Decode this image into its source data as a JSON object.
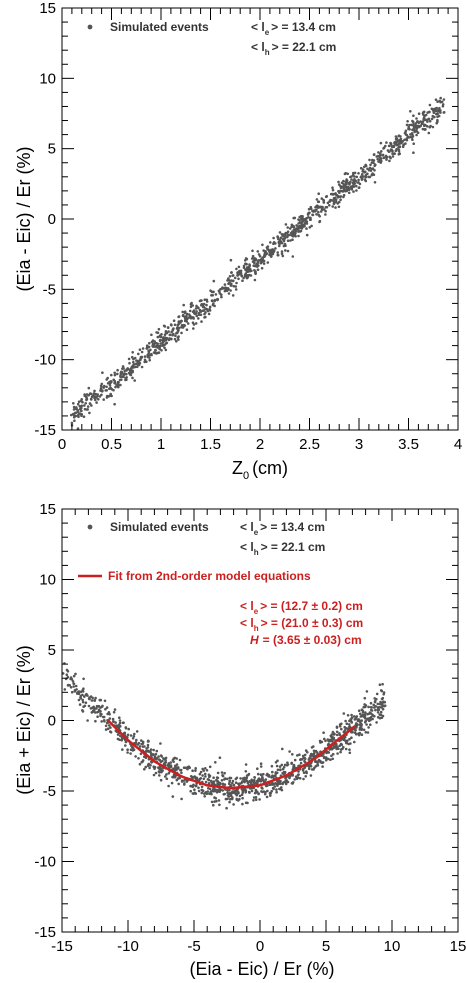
{
  "chart_data": [
    {
      "type": "scatter",
      "xlabel": "Z",
      "xlabel_sub": "0",
      "xlabel_unit": "(cm)",
      "ylabel": "(Eia - Eic) / Er  (%)",
      "xlim": [
        0,
        4
      ],
      "ylim": [
        -15,
        15
      ],
      "x_ticks": [
        0,
        0.5,
        1,
        1.5,
        2,
        2.5,
        3,
        3.5,
        4
      ],
      "x_tick_labels": [
        "0",
        "0.5",
        "1",
        "1.5",
        "2",
        "2.5",
        "3",
        "3.5",
        "4"
      ],
      "y_ticks": [
        -15,
        -10,
        -5,
        0,
        5,
        10,
        15
      ],
      "y_tick_labels": [
        "-15",
        "-10",
        "-5",
        "0",
        "5",
        "10",
        "15"
      ],
      "series": [
        {
          "name": "Simulated events",
          "color": "#555555",
          "trend": {
            "x": [
              0.1,
              3.85
            ],
            "y": [
              -14.0,
              8.0
            ]
          },
          "point_count": 1200
        }
      ],
      "legend": {
        "marker_label": "Simulated events",
        "le_text": "< l",
        "le_sub": "e",
        "le_value": "> = 13.4 cm",
        "lh_text": "< l",
        "lh_sub": "h",
        "lh_value": "> = 22.1 cm"
      }
    },
    {
      "type": "scatter",
      "xlabel": "(Eia - Eic) / Er  (%)",
      "ylabel": "(Eia + Eic) / Er  (%)",
      "xlim": [
        -15,
        15
      ],
      "ylim": [
        -15,
        15
      ],
      "x_ticks": [
        -15,
        -10,
        -5,
        0,
        5,
        10,
        15
      ],
      "x_tick_labels": [
        "-15",
        "-10",
        "-5",
        "0",
        "5",
        "10",
        "15"
      ],
      "y_ticks": [
        -15,
        -10,
        -5,
        0,
        5,
        10,
        15
      ],
      "y_tick_labels": [
        "-15",
        "-10",
        "-5",
        "0",
        "5",
        "10",
        "15"
      ],
      "series": [
        {
          "name": "Simulated events",
          "color": "#555555",
          "x_range": [
            -15,
            9.5
          ],
          "point_count": 1200
        },
        {
          "name": "Fit from 2nd-order model equations",
          "type": "line",
          "color": "#cc1f1f",
          "x": [
            -11.5,
            -10,
            -8,
            -6,
            -4,
            -2.2,
            0,
            2,
            4,
            6,
            7.2
          ],
          "y": [
            0.0,
            -1.4,
            -2.9,
            -3.95,
            -4.6,
            -4.8,
            -4.6,
            -3.9,
            -2.8,
            -1.3,
            -0.4
          ]
        }
      ],
      "legend": {
        "marker_label": "Simulated events",
        "le_text": "< l",
        "le_sub": "e",
        "le_value": "> = 13.4 cm",
        "lh_text": "< l",
        "lh_sub": "h",
        "lh_value": "> = 22.1 cm",
        "fit_label": "Fit from 2nd-order model equations",
        "fit_le_text": "< l",
        "fit_le_sub": "e",
        "fit_le_value": "> = (12.7 ± 0.2) cm",
        "fit_lh_text": "< l",
        "fit_lh_sub": "h",
        "fit_lh_value": "> = (21.0 ± 0.3) cm",
        "fit_h_text": "H",
        "fit_h_value": "= (3.65 ± 0.03) cm"
      }
    }
  ]
}
